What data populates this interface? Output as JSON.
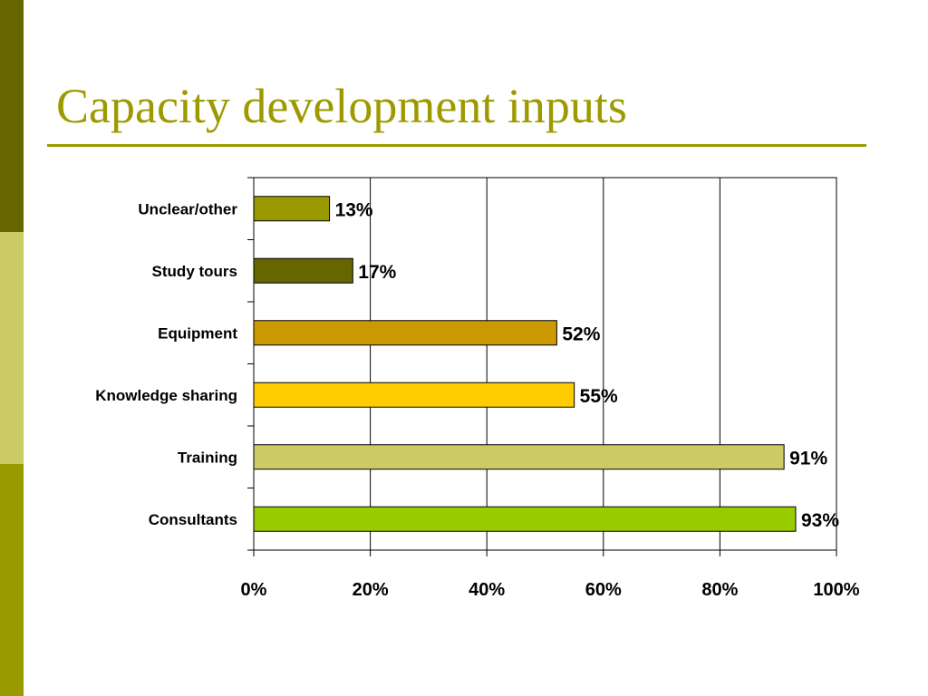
{
  "slide": {
    "title": "Capacity development inputs",
    "colors": {
      "title": "#9c9a00",
      "rule": "#9c9a00",
      "sidebar_top": "#666600",
      "sidebar_mid": "#cccc66",
      "sidebar_bottom": "#999900"
    }
  },
  "chart_data": {
    "type": "bar",
    "orientation": "horizontal",
    "categories": [
      "Unclear/other",
      "Study tours",
      "Equipment",
      "Knowledge sharing",
      "Training",
      "Consultants"
    ],
    "values": [
      13,
      17,
      52,
      55,
      91,
      93
    ],
    "data_labels": [
      "13%",
      "17%",
      "52%",
      "55%",
      "91%",
      "93%"
    ],
    "bar_colors": [
      "#999900",
      "#666600",
      "#cc9900",
      "#ffcc00",
      "#cccc66",
      "#99cc00"
    ],
    "xlim": [
      0,
      100
    ],
    "xticks": [
      0,
      20,
      40,
      60,
      80,
      100
    ],
    "xtick_labels": [
      "0%",
      "20%",
      "40%",
      "60%",
      "80%",
      "100%"
    ],
    "grid": "vertical",
    "legend": "none",
    "title": "",
    "xlabel": "",
    "ylabel": ""
  }
}
